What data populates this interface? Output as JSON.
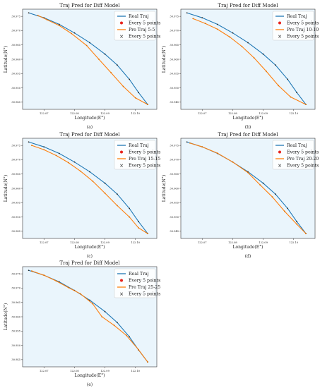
{
  "page": {
    "title": "Traj Pred for Diff Model figure"
  },
  "panels": [
    {
      "label": "(a)",
      "chart_data": {
        "type": "line",
        "title": "Traj Pred for Diff Model",
        "xlabel": "Longitude(E°)",
        "ylabel": "Latitude(N°)",
        "xlim": [
          122.063,
          122.107
        ],
        "ylim": [
          30.9425,
          30.9775
        ],
        "xticks": [
          "122.07",
          "122.08",
          "122.09",
          "122.10"
        ],
        "yticks": [
          "30.975",
          "30.970",
          "30.965",
          "30.960",
          "30.955",
          "30.950",
          "30.945"
        ],
        "legend": [
          "Real Traj",
          "Every 5 points",
          "Pre Traj 5-5",
          "Every 5 points"
        ],
        "legend_position": "top-right",
        "series": [
          {
            "name": "Real Traj",
            "color": "#1f77b4",
            "x": [
              122.065,
              122.07,
              122.075,
              122.08,
              122.085,
              122.09,
              122.094,
              122.098,
              122.101,
              122.104
            ],
            "y": [
              30.9762,
              30.9745,
              30.9722,
              30.9692,
              30.9658,
              30.9618,
              30.958,
              30.953,
              30.9484,
              30.9442
            ]
          },
          {
            "name": "Pre Traj 5-5",
            "color": "#ff7f0e",
            "x": [
              122.068,
              122.071,
              122.075,
              122.079,
              122.084,
              122.088,
              122.092,
              122.096,
              122.1,
              122.104
            ],
            "y": [
              30.9753,
              30.9738,
              30.9718,
              30.969,
              30.9648,
              30.96,
              30.9553,
              30.9505,
              30.9465,
              30.9442
            ]
          }
        ]
      }
    },
    {
      "label": "(b)",
      "chart_data": {
        "type": "line",
        "title": "Traj Pred for Diff Model",
        "xlabel": "Longitude(E°)",
        "ylabel": "Latitude(N°)",
        "xlim": [
          122.063,
          122.107
        ],
        "ylim": [
          30.9425,
          30.9775
        ],
        "xticks": [
          "122.07",
          "122.08",
          "122.09",
          "122.10"
        ],
        "yticks": [
          "30.975",
          "30.970",
          "30.965",
          "30.960",
          "30.955",
          "30.950",
          "30.945"
        ],
        "legend": [
          "Real Traj",
          "Every 5 points",
          "Pre Traj 10-10",
          "Every 5 points"
        ],
        "legend_position": "top-right",
        "series": [
          {
            "name": "Real Traj",
            "color": "#1f77b4",
            "x": [
              122.065,
              122.07,
              122.075,
              122.08,
              122.085,
              122.09,
              122.094,
              122.098,
              122.101,
              122.104
            ],
            "y": [
              30.9762,
              30.9745,
              30.9722,
              30.9692,
              30.9658,
              30.9618,
              30.958,
              30.953,
              30.9484,
              30.9442
            ]
          },
          {
            "name": "Pre Traj 10-10",
            "color": "#ff7f0e",
            "x": [
              122.067,
              122.071,
              122.075,
              122.079,
              122.083,
              122.087,
              122.091,
              122.095,
              122.099,
              122.104
            ],
            "y": [
              30.9742,
              30.9725,
              30.9705,
              30.9678,
              30.9645,
              30.9605,
              30.9558,
              30.9508,
              30.9468,
              30.9442
            ]
          }
        ]
      }
    },
    {
      "label": "(c)",
      "chart_data": {
        "type": "line",
        "title": "Traj Pred for Diff Model",
        "xlabel": "Longitude(E°)",
        "ylabel": "Latitude(N°)",
        "xlim": [
          122.063,
          122.107
        ],
        "ylim": [
          30.9425,
          30.9775
        ],
        "xticks": [
          "122.07",
          "122.08",
          "122.09",
          "122.10"
        ],
        "yticks": [
          "30.975",
          "30.970",
          "30.965",
          "30.960",
          "30.955",
          "30.950",
          "30.945"
        ],
        "legend": [
          "Real Traj",
          "Every 5 points",
          "Pre Traj 15-15",
          "Every 5 points"
        ],
        "legend_position": "top-right",
        "series": [
          {
            "name": "Real Traj",
            "color": "#1f77b4",
            "x": [
              122.065,
              122.07,
              122.075,
              122.08,
              122.085,
              122.09,
              122.094,
              122.098,
              122.101,
              122.104
            ],
            "y": [
              30.9762,
              30.9745,
              30.9722,
              30.9692,
              30.9658,
              30.9618,
              30.958,
              30.953,
              30.9484,
              30.9442
            ]
          },
          {
            "name": "Pre Traj 15-15",
            "color": "#ff7f0e",
            "x": [
              122.066,
              122.07,
              122.074,
              122.078,
              122.082,
              122.086,
              122.09,
              122.094,
              122.098,
              122.101,
              122.104
            ],
            "y": [
              30.975,
              30.9735,
              30.9715,
              30.969,
              30.966,
              30.9625,
              30.9583,
              30.954,
              30.95,
              30.9462,
              30.9442
            ]
          }
        ]
      }
    },
    {
      "label": "(d)",
      "chart_data": {
        "type": "line",
        "title": "Traj Pred for Diff Model",
        "xlabel": "Longitude(E°)",
        "ylabel": "Latitude(N°)",
        "xlim": [
          122.063,
          122.107
        ],
        "ylim": [
          30.9425,
          30.9775
        ],
        "xticks": [
          "122.07",
          "122.08",
          "122.09",
          "122.10"
        ],
        "yticks": [
          "30.975",
          "30.970",
          "30.965",
          "30.960",
          "30.955",
          "30.950",
          "30.945"
        ],
        "legend": [
          "Real Traj",
          "Every 5 points",
          "Pre Traj 20-20",
          "Every 5 points"
        ],
        "legend_position": "top-right",
        "series": [
          {
            "name": "Real Traj",
            "color": "#1f77b4",
            "x": [
              122.065,
              122.07,
              122.075,
              122.08,
              122.085,
              122.09,
              122.094,
              122.098,
              122.101,
              122.104
            ],
            "y": [
              30.9762,
              30.9745,
              30.9722,
              30.9692,
              30.9658,
              30.9618,
              30.958,
              30.953,
              30.9484,
              30.9442
            ]
          },
          {
            "name": "Pre Traj 20-20",
            "color": "#ff7f0e",
            "x": [
              122.066,
              122.07,
              122.075,
              122.08,
              122.085,
              122.089,
              122.093,
              122.097,
              122.101,
              122.104
            ],
            "y": [
              30.9758,
              30.9745,
              30.9723,
              30.9692,
              30.9655,
              30.9612,
              30.957,
              30.952,
              30.9475,
              30.9442
            ]
          }
        ]
      }
    },
    {
      "label": "(e)",
      "chart_data": {
        "type": "line",
        "title": "Traj Pred for Diff Model",
        "xlabel": "Longitude(E°)",
        "ylabel": "Latitude(N°)",
        "xlim": [
          122.063,
          122.107
        ],
        "ylim": [
          30.9425,
          30.9775
        ],
        "xticks": [
          "122.07",
          "122.08",
          "122.09",
          "122.10"
        ],
        "yticks": [
          "30.975",
          "30.970",
          "30.965",
          "30.960",
          "30.955",
          "30.950",
          "30.945"
        ],
        "legend": [
          "Real Traj",
          "Every 5 points",
          "Pre Traj 25-25",
          "Every 5 points"
        ],
        "legend_position": "top-right",
        "series": [
          {
            "name": "Real Traj",
            "color": "#1f77b4",
            "x": [
              122.065,
              122.07,
              122.075,
              122.08,
              122.085,
              122.09,
              122.094,
              122.098,
              122.101,
              122.104
            ],
            "y": [
              30.9762,
              30.9745,
              30.9722,
              30.9692,
              30.9658,
              30.9618,
              30.958,
              30.953,
              30.9484,
              30.9442
            ]
          },
          {
            "name": "Pre Traj 25-25",
            "color": "#ff7f0e",
            "x": [
              122.066,
              122.07,
              122.074,
              122.078,
              122.082,
              122.086,
              122.089,
              122.093,
              122.097,
              122.101,
              122.104
            ],
            "y": [
              30.976,
              30.9745,
              30.9725,
              30.9702,
              30.968,
              30.9645,
              30.96,
              30.957,
              30.9535,
              30.9485,
              30.9442
            ]
          }
        ]
      }
    }
  ]
}
